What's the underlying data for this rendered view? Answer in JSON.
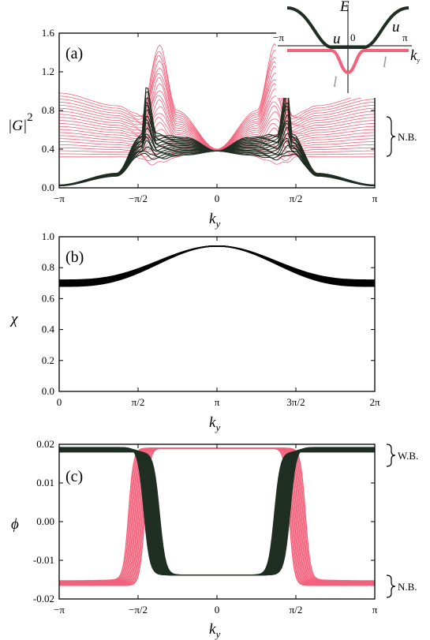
{
  "colors": {
    "pink": "#f2627c",
    "dark": "#1f2e22",
    "black": "#000000",
    "gray": "#9a9a9a"
  },
  "chart_data": [
    {
      "id": "a",
      "type": "line",
      "panel_label": "(a)",
      "xlabel_main": "k",
      "xlabel_sub": "y",
      "ylabel_main": "|G|",
      "ylabel_sup": "2",
      "xlim": [
        -3.14159,
        3.14159
      ],
      "ylim": [
        0,
        1.6
      ],
      "xticks": [
        {
          "value": -3.14159,
          "label": "−π"
        },
        {
          "value": -1.5708,
          "label": "−π/2"
        },
        {
          "value": 0,
          "label": "0"
        },
        {
          "value": 1.5708,
          "label": "π/2"
        },
        {
          "value": 3.14159,
          "label": "π"
        }
      ],
      "yticks": [
        {
          "value": 0.0,
          "label": "0.0"
        },
        {
          "value": 0.4,
          "label": "0.4"
        },
        {
          "value": 0.8,
          "label": "0.8"
        },
        {
          "value": 1.2,
          "label": "1.2"
        },
        {
          "value": 1.6,
          "label": "1.6"
        }
      ],
      "annotation": "N.B.",
      "series": [
        {
          "color": "pink",
          "band_count": 22,
          "band_edge_low": [
            [
              -3.14,
              0.32
            ],
            [
              -1.6,
              0.32
            ],
            [
              -1.3,
              0.25
            ],
            [
              -0.5,
              0.35
            ],
            [
              0,
              0.38
            ],
            [
              0.5,
              0.35
            ],
            [
              1.3,
              0.25
            ],
            [
              1.6,
              0.32
            ],
            [
              3.14,
              0.32
            ]
          ],
          "band_edge_high": [
            [
              -3.14,
              0.98
            ],
            [
              -2.0,
              0.85
            ],
            [
              -1.5,
              0.75
            ],
            [
              -1.15,
              1.48
            ],
            [
              -0.8,
              0.8
            ],
            [
              0,
              0.4
            ],
            [
              0.8,
              0.8
            ],
            [
              1.15,
              1.48
            ],
            [
              1.5,
              0.75
            ],
            [
              2.0,
              0.85
            ],
            [
              3.14,
              0.98
            ]
          ]
        },
        {
          "color": "dark",
          "band_count": 16,
          "band_edge_low": [
            [
              -3.14,
              0.02
            ],
            [
              -2.0,
              0.12
            ],
            [
              -1.5,
              0.35
            ],
            [
              -1.2,
              0.3
            ],
            [
              -0.6,
              0.34
            ],
            [
              0,
              0.38
            ],
            [
              0.6,
              0.34
            ],
            [
              1.2,
              0.3
            ],
            [
              1.5,
              0.35
            ],
            [
              2.0,
              0.12
            ],
            [
              3.14,
              0.02
            ]
          ],
          "band_edge_high": [
            [
              -3.14,
              0.03
            ],
            [
              -2.0,
              0.15
            ],
            [
              -1.5,
              0.55
            ],
            [
              -1.4,
              1.05
            ],
            [
              -1.2,
              0.55
            ],
            [
              -0.6,
              0.52
            ],
            [
              0,
              0.38
            ],
            [
              0.6,
              0.52
            ],
            [
              1.2,
              0.55
            ],
            [
              1.4,
              1.05
            ],
            [
              1.5,
              0.55
            ],
            [
              2.0,
              0.15
            ],
            [
              3.14,
              0.03
            ]
          ]
        }
      ],
      "inset": {
        "ylabel": "E",
        "xlabel_main": "k",
        "xlabel_sub": "y",
        "xticks": [
          "−π",
          "0",
          "π"
        ],
        "band_labels_u": [
          "u",
          "u"
        ],
        "band_labels_l": [
          "l",
          "l"
        ]
      }
    },
    {
      "id": "b",
      "type": "line",
      "panel_label": "(b)",
      "xlabel_main": "k",
      "xlabel_sub": "y",
      "ylabel_main": "χ",
      "xlim": [
        0,
        6.28318
      ],
      "ylim": [
        0,
        1.0
      ],
      "xticks": [
        {
          "value": 0,
          "label": "0"
        },
        {
          "value": 1.5708,
          "label": "π/2"
        },
        {
          "value": 3.14159,
          "label": "π"
        },
        {
          "value": 4.71239,
          "label": "3π/2"
        },
        {
          "value": 6.28318,
          "label": "2π"
        }
      ],
      "yticks": [
        {
          "value": 0.0,
          "label": "0.0"
        },
        {
          "value": 0.2,
          "label": "0.2"
        },
        {
          "value": 0.4,
          "label": "0.4"
        },
        {
          "value": 0.6,
          "label": "0.6"
        },
        {
          "value": 0.8,
          "label": "0.8"
        },
        {
          "value": 1.0,
          "label": "1.0"
        }
      ],
      "series": [
        {
          "color": "black",
          "band_min_at_edges": 0.68,
          "band_max_at_edges": 0.72,
          "peak_at_pi": 0.94
        }
      ]
    },
    {
      "id": "c",
      "type": "line",
      "panel_label": "(c)",
      "xlabel_main": "k",
      "xlabel_sub": "y",
      "ylabel_main": "ϕ",
      "xlim": [
        -3.14159,
        3.14159
      ],
      "ylim": [
        -0.02,
        0.02
      ],
      "xticks": [
        {
          "value": -3.14159,
          "label": "−π"
        },
        {
          "value": -1.5708,
          "label": "−π/2"
        },
        {
          "value": 0,
          "label": "0"
        },
        {
          "value": 1.5708,
          "label": "π/2"
        },
        {
          "value": 3.14159,
          "label": "π"
        }
      ],
      "yticks": [
        {
          "value": -0.02,
          "label": "-0.02"
        },
        {
          "value": -0.01,
          "label": "-0.01"
        },
        {
          "value": 0.0,
          "label": "0.00"
        },
        {
          "value": 0.01,
          "label": "0.01"
        },
        {
          "value": 0.02,
          "label": "0.02"
        }
      ],
      "annotations": [
        "W.B.",
        "N.B."
      ],
      "series": [
        {
          "color": "pink",
          "top_level": 0.019,
          "bottom_outer": -0.0165,
          "bottom_inner": -0.0135,
          "transition_at": 1.6
        },
        {
          "color": "dark",
          "top_outer": 0.018,
          "top_inner": 0.0192,
          "bottom_level": -0.0138,
          "transition_at": 1.3
        }
      ]
    }
  ]
}
